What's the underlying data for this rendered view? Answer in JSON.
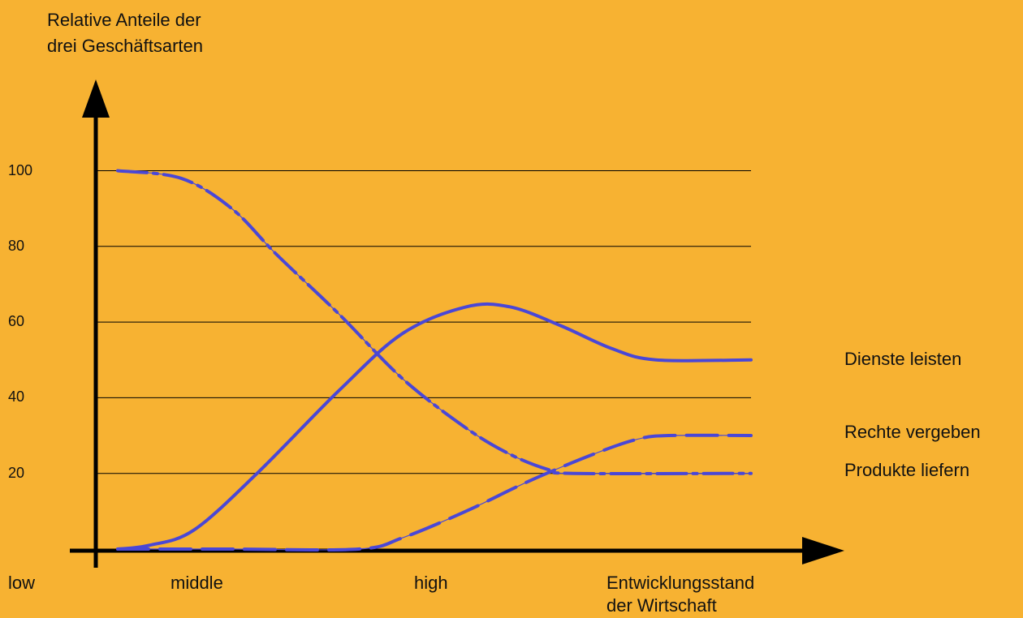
{
  "chart_data": {
    "type": "line",
    "title": "",
    "ylabel": [
      "Relative Anteile der",
      "drei Geschäftsarten"
    ],
    "xlabel": [
      "Entwicklungsstand",
      "der Wirtschaft"
    ],
    "ylim": [
      0,
      100
    ],
    "yticks": [
      100,
      80,
      60,
      40,
      20
    ],
    "xticks": [
      "low",
      "middle",
      "high"
    ],
    "grid": true,
    "series": [
      {
        "name": "Dienste leisten",
        "style": "solid",
        "points": [
          [
            0.0,
            0
          ],
          [
            0.05,
            1
          ],
          [
            0.12,
            5
          ],
          [
            0.22,
            20
          ],
          [
            0.35,
            42
          ],
          [
            0.45,
            57
          ],
          [
            0.55,
            64
          ],
          [
            0.62,
            64
          ],
          [
            0.7,
            59
          ],
          [
            0.78,
            53
          ],
          [
            0.85,
            50
          ],
          [
            1.0,
            50
          ]
        ]
      },
      {
        "name": "Rechte vergeben",
        "style": "long-dash",
        "points": [
          [
            0.0,
            0
          ],
          [
            0.18,
            0
          ],
          [
            0.38,
            0
          ],
          [
            0.45,
            3
          ],
          [
            0.55,
            10
          ],
          [
            0.65,
            18
          ],
          [
            0.75,
            25
          ],
          [
            0.82,
            29
          ],
          [
            0.87,
            30
          ],
          [
            1.0,
            30
          ]
        ]
      },
      {
        "name": "Produkte liefern",
        "style": "dash-dot",
        "points": [
          [
            0.0,
            100
          ],
          [
            0.1,
            98
          ],
          [
            0.18,
            90
          ],
          [
            0.25,
            78
          ],
          [
            0.35,
            62
          ],
          [
            0.45,
            45
          ],
          [
            0.55,
            32
          ],
          [
            0.62,
            25
          ],
          [
            0.68,
            21
          ],
          [
            0.72,
            20
          ],
          [
            1.0,
            20
          ]
        ]
      }
    ]
  }
}
